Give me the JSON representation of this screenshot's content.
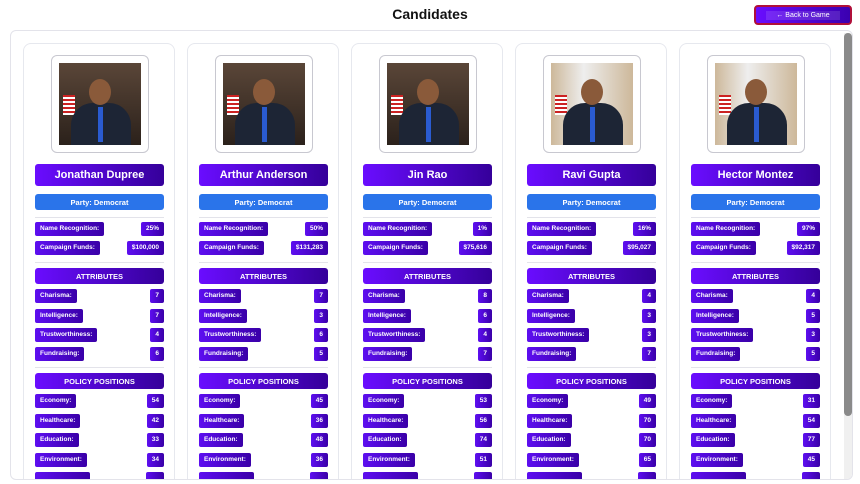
{
  "header": {
    "title": "Candidates",
    "back_label": "← Back to Game"
  },
  "labels": {
    "name_recognition": "Name Recognition:",
    "campaign_funds": "Campaign Funds:",
    "attributes": "ATTRIBUTES",
    "policy": "POLICY POSITIONS",
    "charisma": "Charisma:",
    "intelligence": "Intelligence:",
    "trustworthiness": "Trustworthiness:",
    "fundraising": "Fundraising:",
    "economy": "Economy:",
    "healthcare": "Healthcare:",
    "education": "Education:",
    "environment": "Environment:"
  },
  "candidates": [
    {
      "name": "Jonathan Dupree",
      "party": "Party: Democrat",
      "name_recognition": "25%",
      "campaign_funds": "$100,000",
      "charisma": "7",
      "intelligence": "7",
      "trustworthiness": "4",
      "fundraising": "6",
      "economy": "54",
      "healthcare": "42",
      "education": "33",
      "environment": "34",
      "bg": "A"
    },
    {
      "name": "Arthur Anderson",
      "party": "Party: Democrat",
      "name_recognition": "50%",
      "campaign_funds": "$131,283",
      "charisma": "7",
      "intelligence": "3",
      "trustworthiness": "6",
      "fundraising": "5",
      "economy": "45",
      "healthcare": "36",
      "education": "48",
      "environment": "36",
      "bg": "A"
    },
    {
      "name": "Jin Rao",
      "party": "Party: Democrat",
      "name_recognition": "1%",
      "campaign_funds": "$75,616",
      "charisma": "8",
      "intelligence": "6",
      "trustworthiness": "4",
      "fundraising": "7",
      "economy": "53",
      "healthcare": "56",
      "education": "74",
      "environment": "51",
      "bg": "A"
    },
    {
      "name": "Ravi Gupta",
      "party": "Party: Democrat",
      "name_recognition": "16%",
      "campaign_funds": "$95,027",
      "charisma": "4",
      "intelligence": "3",
      "trustworthiness": "3",
      "fundraising": "7",
      "economy": "49",
      "healthcare": "70",
      "education": "70",
      "environment": "65",
      "bg": "B"
    },
    {
      "name": "Hector Montez",
      "party": "Party: Democrat",
      "name_recognition": "97%",
      "campaign_funds": "$92,317",
      "charisma": "4",
      "intelligence": "5",
      "trustworthiness": "3",
      "fundraising": "5",
      "economy": "31",
      "healthcare": "54",
      "education": "77",
      "environment": "45",
      "bg": "B"
    }
  ]
}
